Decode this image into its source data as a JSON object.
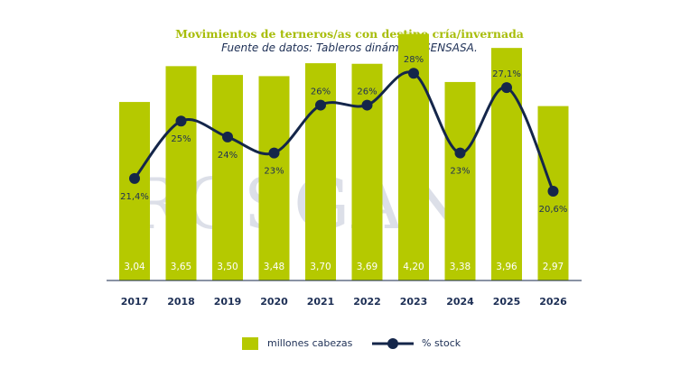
{
  "title": "Movimientos de terneros/as con destino cría/invernada",
  "subtitle": "Fuente de datos: Tableros dinámicos SENSASA.",
  "watermark": "ROSGAN",
  "colors": {
    "bar": "#b5c900",
    "line": "#14264a",
    "title": "#a8bd0a",
    "text": "#1d2f55",
    "bar_label": "#ffffff"
  },
  "legend": {
    "bars": "millones cabezas",
    "line": "% stock"
  },
  "chart_data": {
    "type": "bar",
    "categories": [
      "2017",
      "2018",
      "2019",
      "2020",
      "2021",
      "2022",
      "2023",
      "2024",
      "2025",
      "2026"
    ],
    "series": [
      {
        "name": "millones cabezas",
        "type": "bar",
        "values": [
          3.04,
          3.65,
          3.5,
          3.48,
          3.7,
          3.69,
          4.2,
          3.38,
          3.96,
          2.97
        ],
        "labels": [
          "3,04",
          "3,65",
          "3,50",
          "3,48",
          "3,70",
          "3,69",
          "4,20",
          "3,38",
          "3,96",
          "2,97"
        ]
      },
      {
        "name": "% stock",
        "type": "line",
        "values": [
          21.4,
          25,
          24,
          23,
          26,
          26,
          28,
          23,
          27.1,
          20.6
        ],
        "labels": [
          "21,4%",
          "25%",
          "24%",
          "23%",
          "26%",
          "26%",
          "28%",
          "23%",
          "27,1%",
          "20,6%"
        ],
        "label_positions": [
          "below",
          "below",
          "below",
          "below",
          "above",
          "above",
          "above",
          "below",
          "above",
          "below"
        ]
      }
    ],
    "bar_ylim": [
      0,
      4.5
    ],
    "line_ylim": [
      15,
      29.2
    ],
    "grid": false,
    "legend_position": "bottom"
  }
}
